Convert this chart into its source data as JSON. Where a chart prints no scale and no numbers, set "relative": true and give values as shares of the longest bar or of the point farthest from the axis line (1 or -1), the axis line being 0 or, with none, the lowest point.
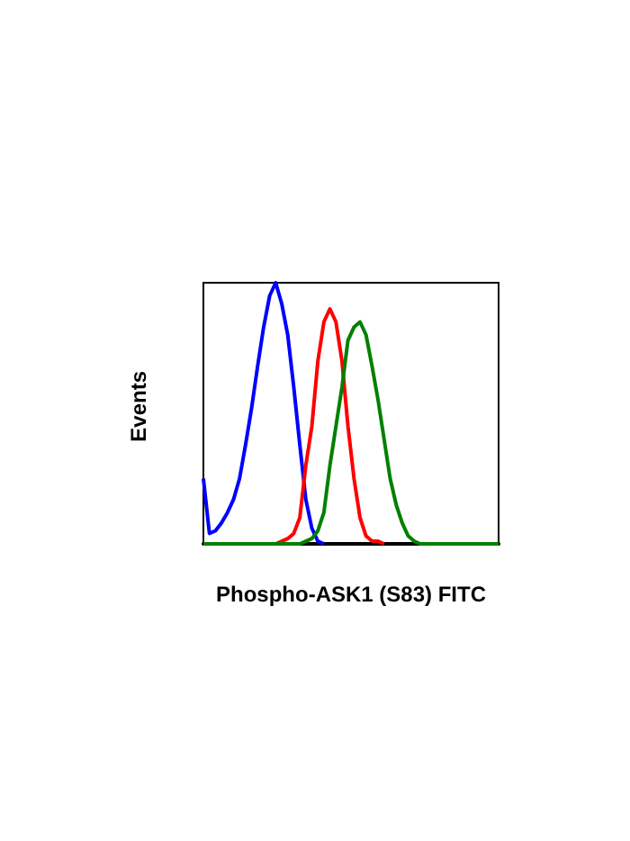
{
  "chart_data": {
    "type": "line",
    "relative": true,
    "xlabel": "Phospho-ASK1 (S83) FITC",
    "ylabel": "Events",
    "grid": false,
    "line_style": "solid",
    "categories": [
      null,
      null,
      null,
      null,
      null,
      null,
      null,
      null,
      null,
      null,
      null,
      null,
      null,
      null,
      null,
      null,
      null,
      null,
      null,
      null,
      null,
      null,
      null,
      null,
      null,
      null,
      null,
      null,
      null,
      null,
      null,
      null,
      null,
      null,
      null,
      null,
      null,
      null,
      null,
      null,
      null,
      null,
      null,
      null,
      null,
      null,
      null,
      null,
      null,
      null
    ],
    "series": [
      {
        "color": "#0000ff",
        "values": [
          0.25,
          0.04,
          0.05,
          0.08,
          0.12,
          0.17,
          0.25,
          0.38,
          0.52,
          0.68,
          0.83,
          0.95,
          1,
          0.92,
          0.8,
          0.6,
          0.38,
          0.17,
          0.06,
          0.01,
          0,
          null,
          null,
          null,
          null,
          null,
          null,
          null,
          null,
          null,
          null,
          null,
          null,
          null,
          null,
          null,
          null,
          null,
          null,
          null,
          null,
          null,
          null,
          null,
          null,
          null,
          null,
          null,
          null,
          null
        ]
      },
      {
        "color": "#ff0000",
        "values": [
          null,
          null,
          null,
          null,
          null,
          null,
          null,
          null,
          null,
          null,
          null,
          null,
          0,
          0.01,
          0.02,
          0.04,
          0.1,
          0.3,
          0.45,
          0.7,
          0.85,
          0.9,
          0.85,
          0.7,
          0.45,
          0.25,
          0.1,
          0.03,
          0.01,
          0.01,
          0,
          null,
          null,
          null,
          null,
          null,
          null,
          null,
          null,
          null,
          null,
          null,
          null,
          null,
          null,
          null,
          null,
          null,
          null,
          null
        ]
      },
      {
        "color": "#008000",
        "values": [
          0,
          0,
          0,
          0,
          0,
          0,
          0,
          0,
          0,
          0,
          0,
          0,
          0,
          0,
          0,
          0,
          0,
          0.01,
          0.02,
          0.05,
          0.12,
          0.3,
          0.45,
          0.6,
          0.78,
          0.83,
          0.85,
          0.8,
          0.68,
          0.55,
          0.4,
          0.25,
          0.15,
          0.08,
          0.03,
          0.01,
          0,
          0,
          0,
          0,
          0,
          0,
          0,
          0,
          0,
          0,
          0,
          0,
          0,
          0
        ]
      }
    ]
  }
}
